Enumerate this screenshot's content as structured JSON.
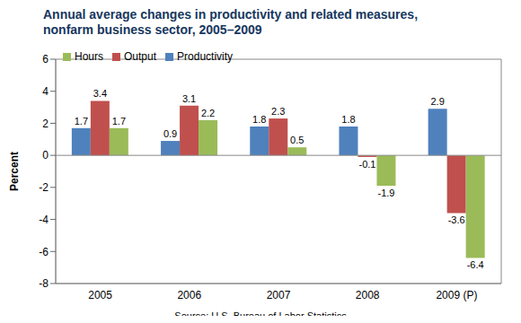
{
  "chart_data": {
    "type": "bar",
    "title": "Annual average changes in productivity and related measures,\nnonfarm business sector, 2005–2009",
    "y_label": "Percent",
    "source": "Source: U.S. Bureau of Labor Statistics",
    "categories": [
      "2005",
      "2006",
      "2007",
      "2008",
      "2009 (P)"
    ],
    "series": [
      {
        "name": "Productivity",
        "color": "#4F81BD",
        "values": [
          1.7,
          0.9,
          1.8,
          1.8,
          2.9
        ]
      },
      {
        "name": "Output",
        "color": "#C0504D",
        "values": [
          3.4,
          3.1,
          2.3,
          -0.1,
          -3.6
        ]
      },
      {
        "name": "Hours",
        "color": "#9BBB59",
        "values": [
          1.7,
          2.2,
          0.5,
          -1.9,
          -6.4
        ]
      }
    ],
    "ylim": [
      -8,
      6
    ],
    "yticks": [
      -8,
      -6,
      -4,
      -2,
      0,
      2,
      4,
      6
    ],
    "grid": false,
    "legend": "top-left",
    "data_labels": true
  }
}
